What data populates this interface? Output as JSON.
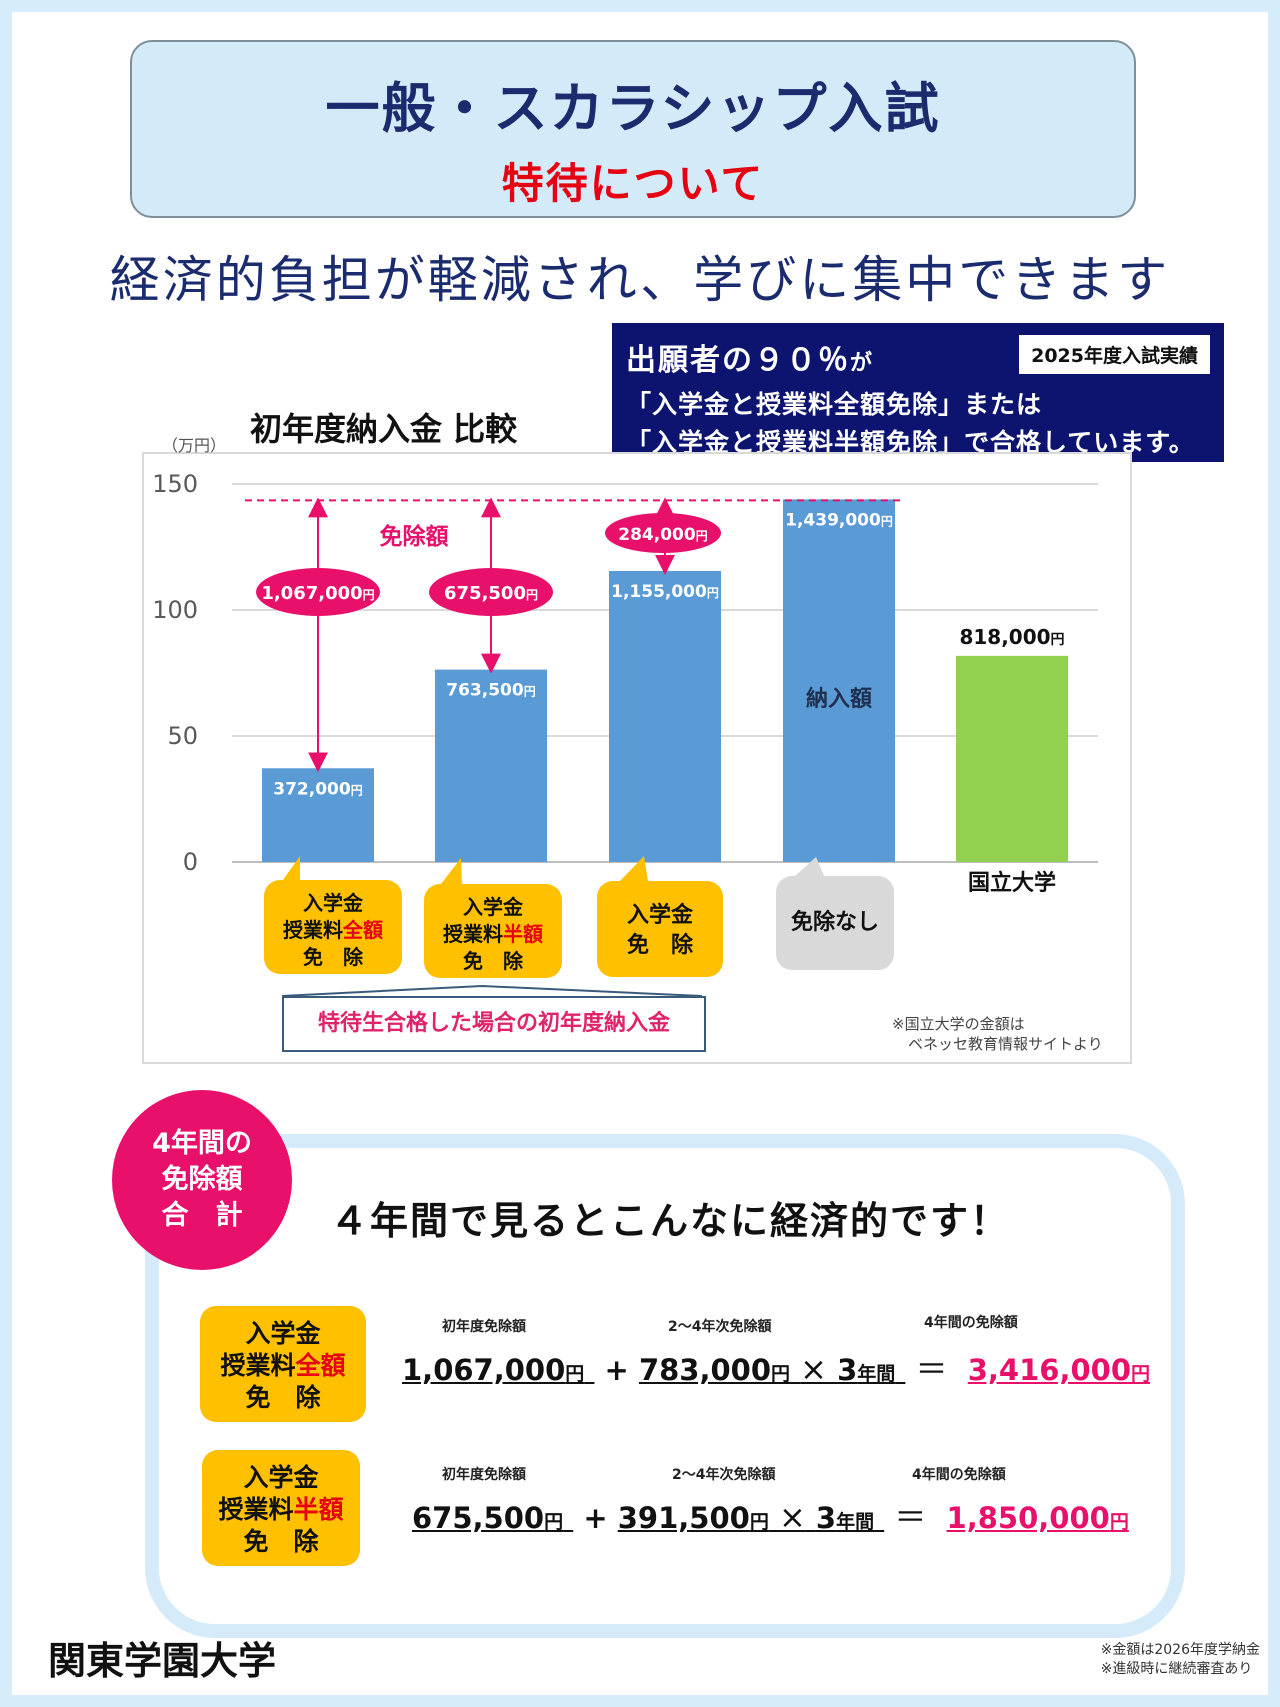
{
  "title": {
    "main": "一般・スカラシップ入試",
    "sub": "特待について"
  },
  "headline": "経済的負担が軽減され、学びに集中できます",
  "highlight": {
    "line1_main": "出願者の９０％",
    "line1_suffix": "が",
    "tag": "2025年度入試実績",
    "line2": "「入学金と授業料全額免除」または",
    "line3": "「入学金と授業料半額免除」で合格しています。"
  },
  "chart_data": {
    "type": "bar",
    "title": "初年度納入金 比較",
    "ylabel": "（万円）",
    "ylim": [
      0,
      150
    ],
    "yticks": [
      0,
      50,
      100,
      150
    ],
    "categories": [
      "入学金授業料全額免除",
      "入学金授業料半額免除",
      "入学金免除",
      "免除なし",
      "国立大学"
    ],
    "values": [
      37.2,
      76.35,
      115.5,
      143.9,
      81.8
    ],
    "value_labels": [
      "372,000",
      "763,500",
      "1,155,000",
      "1,439,000",
      "818,000"
    ],
    "yen": "円",
    "colors": [
      "#5b9bd5",
      "#5b9bd5",
      "#5b9bd5",
      "#5b9bd5",
      "#92d050"
    ],
    "exemption_title": "免除額",
    "exemption_labels": [
      "1,067,000",
      "675,500",
      "284,000"
    ],
    "inside_label": "納入額",
    "national_label": "国立大学",
    "reference_value": 143.9
  },
  "bubbles": [
    {
      "l1": "入学金",
      "l2a": "授業料",
      "l2b": "全額",
      "l3": "免　除"
    },
    {
      "l1": "入学金",
      "l2a": "授業料",
      "l2b": "半額",
      "l3": "免　除"
    },
    {
      "l1": "入学金",
      "l2": "免　除"
    },
    {
      "l1": "免除なし"
    }
  ],
  "chart_note": "特待生合格した場合の初年度納入金",
  "source_note": {
    "line1": "※国立大学の金額は",
    "line2": "ベネッセ教育情報サイトより"
  },
  "four_year": {
    "circle": [
      "4年間の",
      "免除額",
      "合　計"
    ],
    "headline": "４年間で見るとこんなに経済的です！",
    "rows": [
      {
        "badge": {
          "l1": "入学金",
          "l2a": "授業料",
          "l2b": "全額",
          "l3": "免　除"
        },
        "label_first": "初年度免除額",
        "label_next": "2～4年次免除額",
        "label_total": "4年間の免除額",
        "first": "1,067,000",
        "next": "783,000",
        "times": "3",
        "total": "3,416,000"
      },
      {
        "badge": {
          "l1": "入学金",
          "l2a": "授業料",
          "l2b": "半額",
          "l3": "免　除"
        },
        "label_first": "初年度免除額",
        "label_next": "2～4年次免除額",
        "label_total": "4年間の免除額",
        "first": "675,500",
        "next": "391,500",
        "times": "3",
        "total": "1,850,000"
      }
    ],
    "yen": "円",
    "years": "年間",
    "plus": "+",
    "multiply": "×",
    "equals": "＝"
  },
  "footer": {
    "university": "関東学園大学",
    "note1": "※金額は2026年度学納金",
    "note2": "※進級時に継続審査あり"
  }
}
